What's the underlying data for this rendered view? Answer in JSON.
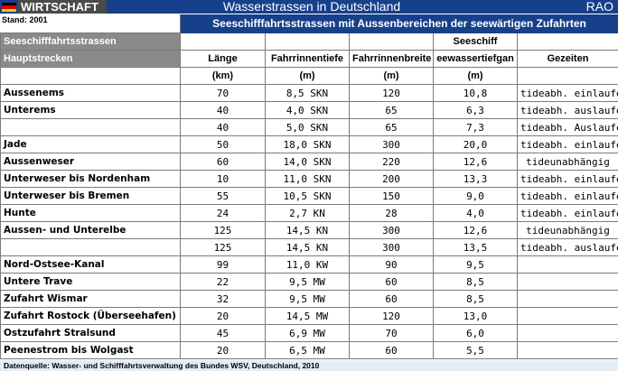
{
  "header": {
    "tag": "WIRTSCHAFT",
    "title": "Wasserstrassen in Deutschland",
    "brand": "RAO",
    "stand": "Stand: 2001",
    "flag_colors": [
      "#000000",
      "#dd0000",
      "#ffce00"
    ]
  },
  "table": {
    "main_title": "Seeschifffahrtsstrassen mit Aussenbereichen der seewärtigen Zufahrten",
    "section_label": "Seeschifffahrtsstrassen",
    "subsection_label": "Hauptstrecken",
    "seeschiff_label": "Seeschiff",
    "columns": [
      "Länge",
      "Fahrrinnentiefe",
      "Fahrrinnenbreite",
      "eewassertiefgan",
      "Gezeiten"
    ],
    "units": [
      "(km)",
      "(m)",
      "(m)",
      "(m)",
      ""
    ],
    "rows": [
      {
        "name": "Aussenems",
        "laenge": "70",
        "tiefe": "8,5 SKN",
        "breite": "120",
        "tiefgang": "10,8",
        "gezeiten": "tideabh. einlaufend"
      },
      {
        "name": "Unterems",
        "laenge": "40",
        "tiefe": "4,0 SKN",
        "breite": "65",
        "tiefgang": "6,3",
        "gezeiten": "tideabh. auslaufend"
      },
      {
        "name": "",
        "laenge": "40",
        "tiefe": "5,0 SKN",
        "breite": "65",
        "tiefgang": "7,3",
        "gezeiten": "tideabh. Auslaufend"
      },
      {
        "name": "Jade",
        "laenge": "50",
        "tiefe": "18,0 SKN",
        "breite": "300",
        "tiefgang": "20,0",
        "gezeiten": "tideabh. einlaufend"
      },
      {
        "name": "Aussenweser",
        "laenge": "60",
        "tiefe": "14,0 SKN",
        "breite": "220",
        "tiefgang": "12,6",
        "gezeiten": "tideunabhängig"
      },
      {
        "name": "Unterweser bis Nordenham",
        "laenge": "10",
        "tiefe": "11,0 SKN",
        "breite": "200",
        "tiefgang": "13,3",
        "gezeiten": "tideabh. einlaufend"
      },
      {
        "name": "Unterweser bis Bremen",
        "laenge": "55",
        "tiefe": "10,5 SKN",
        "breite": "150",
        "tiefgang": "9,0",
        "gezeiten": "tideabh. einlaufend"
      },
      {
        "name": "Hunte",
        "laenge": "24",
        "tiefe": "2,7 KN",
        "breite": "28",
        "tiefgang": "4,0",
        "gezeiten": "tideabh. einlaufend"
      },
      {
        "name": "Aussen- und Unterelbe",
        "laenge": "125",
        "tiefe": "14,5 KN",
        "breite": "300",
        "tiefgang": "12,6",
        "gezeiten": "tideunabhängig"
      },
      {
        "name": "",
        "laenge": "125",
        "tiefe": "14,5 KN",
        "breite": "300",
        "tiefgang": "13,5",
        "gezeiten": "tideabh. auslaufend"
      },
      {
        "name": "Nord-Ostsee-Kanal",
        "laenge": "99",
        "tiefe": "11,0 KW",
        "breite": "90",
        "tiefgang": "9,5",
        "gezeiten": ""
      },
      {
        "name": "Untere Trave",
        "laenge": "22",
        "tiefe": "9,5 MW",
        "breite": "60",
        "tiefgang": "8,5",
        "gezeiten": ""
      },
      {
        "name": "Zufahrt Wismar",
        "laenge": "32",
        "tiefe": "9,5 MW",
        "breite": "60",
        "tiefgang": "8,5",
        "gezeiten": ""
      },
      {
        "name": "Zufahrt Rostock (Überseehafen)",
        "laenge": "20",
        "tiefe": "14,5 MW",
        "breite": "120",
        "tiefgang": "13,0",
        "gezeiten": ""
      },
      {
        "name": "Ostzufahrt Stralsund",
        "laenge": "45",
        "tiefe": "6,9 MW",
        "breite": "70",
        "tiefgang": "6,0",
        "gezeiten": ""
      },
      {
        "name": "Peenestrom bis Wolgast",
        "laenge": "20",
        "tiefe": "6,5 MW",
        "breite": "60",
        "tiefgang": "5,5",
        "gezeiten": ""
      }
    ]
  },
  "footer": "Datenquelle: Wasser- und Schifffahrtsverwaltung des Bundes WSV, Deutschland,  2010"
}
